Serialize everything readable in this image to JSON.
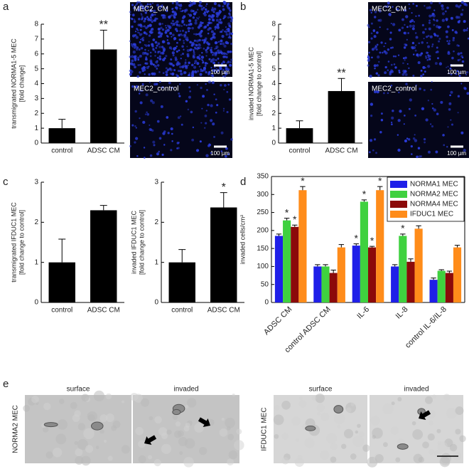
{
  "panel_labels": [
    "a",
    "b",
    "c",
    "d",
    "e"
  ],
  "micrographs": [
    {
      "label": "MEC2_CM",
      "scale": "100 µm"
    },
    {
      "label": "MEC2_control",
      "scale": "100 µm"
    },
    {
      "label": "MEC2_CM",
      "scale": "100 µm"
    },
    {
      "label": "MEC2_control",
      "scale": "100 µm"
    }
  ],
  "panel_e": {
    "columns": [
      "surface",
      "invaded",
      "surface",
      "invaded"
    ],
    "rows": [
      "NORMA2 MEC",
      "IFDUC1 MEC"
    ]
  },
  "chart_data": [
    {
      "type": "bar",
      "ylabel": [
        "transmigrated NORMA1-5 MEC",
        "[fold change]"
      ],
      "categories": [
        "control",
        "ADSC CM"
      ],
      "values": [
        1,
        6.3
      ],
      "errors": [
        0.6,
        1.3
      ],
      "significance": [
        null,
        "**"
      ],
      "color": "#000000",
      "ylim": [
        0,
        8
      ],
      "yticks": [
        0,
        1,
        2,
        3,
        4,
        5,
        6,
        7,
        8
      ],
      "frame": false
    },
    {
      "type": "bar",
      "ylabel": [
        "invaded NORMA1-5 MEC",
        "[fold change to control]"
      ],
      "categories": [
        "control",
        "ADSC CM"
      ],
      "values": [
        1,
        3.5
      ],
      "errors": [
        0.5,
        0.85
      ],
      "significance": [
        null,
        "**"
      ],
      "color": "#000000",
      "ylim": [
        0,
        8
      ],
      "yticks": [
        0,
        1,
        2,
        3,
        4,
        5,
        6,
        7,
        8
      ],
      "frame": false
    },
    {
      "type": "bar",
      "ylabel": [
        "transmigrated IFDUC1 MEC",
        "[fold change to control]"
      ],
      "categories": [
        "control",
        "ADSC CM"
      ],
      "values": [
        1,
        2.3
      ],
      "errors": [
        0.58,
        0.12
      ],
      "significance": [
        null,
        null
      ],
      "color": "#000000",
      "ylim": [
        0,
        3
      ],
      "yticks": [
        0,
        1,
        2,
        3
      ],
      "frame": false
    },
    {
      "type": "bar",
      "ylabel": [
        "invaded IFDUC1 MEC",
        "[fold change to control]"
      ],
      "categories": [
        "control",
        "ADSC CM"
      ],
      "values": [
        1,
        2.37
      ],
      "errors": [
        0.32,
        0.37
      ],
      "significance": [
        null,
        "*"
      ],
      "color": "#000000",
      "ylim": [
        0,
        3
      ],
      "yticks": [
        0,
        1,
        2,
        3
      ],
      "frame": false
    },
    {
      "type": "bar",
      "ylabel": [
        "invaded cells/cm²"
      ],
      "categories": [
        "ADSC CM",
        "control ADSC CM",
        "IL-6",
        "IL-8",
        "control IL-6/IL-8"
      ],
      "series": [
        {
          "name": "NORMA1 MEC",
          "color": "#1f1fe8",
          "values": [
            185,
            100,
            158,
            100,
            63
          ],
          "errors": [
            5,
            5,
            5,
            5,
            5
          ],
          "significance": [
            null,
            null,
            "*",
            null,
            null
          ]
        },
        {
          "name": "NORMA2 MEC",
          "color": "#3fd13f",
          "values": [
            228,
            100,
            280,
            185,
            88
          ],
          "errors": [
            6,
            5,
            5,
            5,
            3
          ],
          "significance": [
            "*",
            null,
            "*",
            "*",
            null
          ]
        },
        {
          "name": "NORMA4 MEC",
          "color": "#8b0a0a",
          "values": [
            210,
            82,
            153,
            113,
            82
          ],
          "errors": [
            5,
            8,
            3,
            8,
            5
          ],
          "significance": [
            "*",
            null,
            "*",
            null,
            null
          ]
        },
        {
          "name": "IFDUC1 MEC",
          "color": "#ff8c1a",
          "values": [
            312,
            153,
            312,
            205,
            153
          ],
          "errors": [
            10,
            8,
            10,
            8,
            6
          ],
          "significance": [
            "*",
            null,
            "*",
            null,
            null
          ]
        }
      ],
      "ylim": [
        0,
        350
      ],
      "yticks": [
        0,
        50,
        100,
        150,
        200,
        250,
        300,
        350
      ],
      "frame": true,
      "xtick_rotation": 45,
      "legend": "upper right"
    }
  ]
}
